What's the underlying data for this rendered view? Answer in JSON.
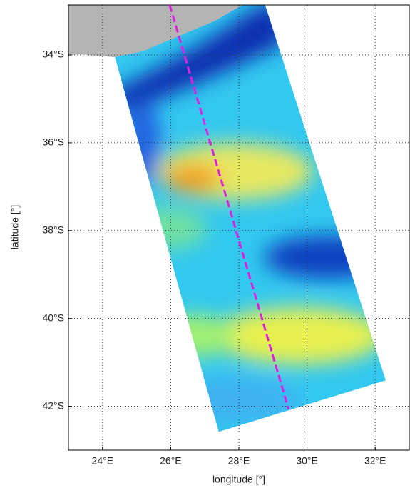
{
  "chart_data": {
    "type": "map",
    "x_label": "longitude [°]",
    "y_label": "latitude [°]",
    "xlim": [
      23,
      33
    ],
    "ylim": [
      -43,
      -32.86
    ],
    "xticks": [
      {
        "value": 24,
        "label": "24°E"
      },
      {
        "value": 26,
        "label": "26°E"
      },
      {
        "value": 28,
        "label": "28°E"
      },
      {
        "value": 30,
        "label": "30°E"
      },
      {
        "value": 32,
        "label": "32°E"
      }
    ],
    "yticks": [
      {
        "value": -34,
        "label": "34°S"
      },
      {
        "value": -36,
        "label": "36°S"
      },
      {
        "value": -38,
        "label": "38°S"
      },
      {
        "value": -40,
        "label": "40°S"
      },
      {
        "value": -42,
        "label": "42°S"
      }
    ],
    "grid": true,
    "track": {
      "color": "#e020e0",
      "lon": [
        25.97,
        29.46
      ],
      "lat": [
        -32.86,
        -42.07
      ]
    },
    "swath": {
      "lon": [
        23.94,
        28.77,
        32.31,
        27.41
      ],
      "lat": [
        -32.86,
        -32.86,
        -41.41,
        -42.58
      ]
    }
  }
}
